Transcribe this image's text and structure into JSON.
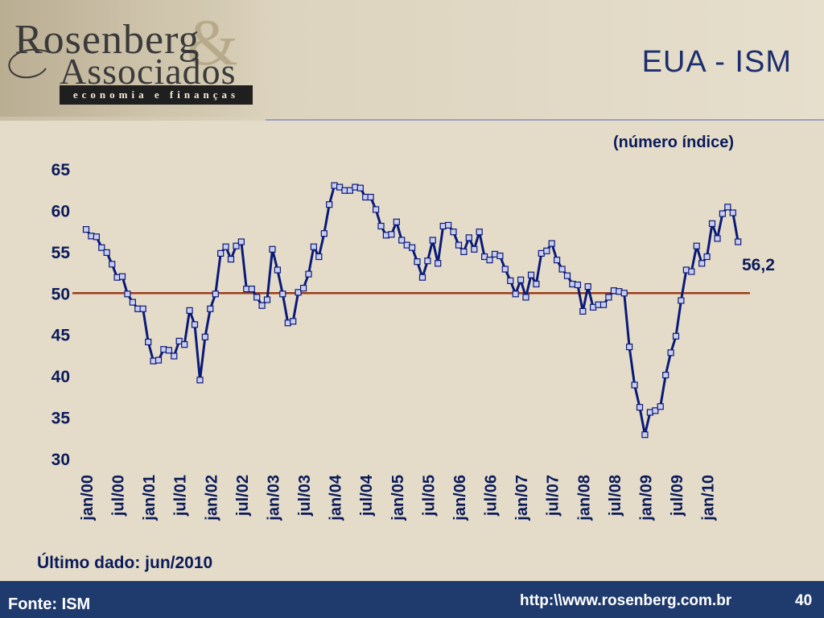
{
  "header": {
    "logo_line1": "Rosenberg",
    "logo_amp": "&",
    "logo_line2": "Associados",
    "logo_tagline": "economia e finanças",
    "title": "EUA - ISM"
  },
  "footer": {
    "source": "Fonte: ISM",
    "url": "http:\\\\www.rosenberg.com.br",
    "page": "40"
  },
  "note": "Último dado: jun/2010",
  "colors": {
    "series": "#0a1a78",
    "marker_fill": "#c9cdf0",
    "reference_line": "#9a3c1a",
    "text": "#0a1a5a",
    "footer": "#1f3b6e"
  },
  "chart_data": {
    "type": "line",
    "subtitle": "(número índice)",
    "ylim": [
      30,
      65
    ],
    "yticks": [
      65,
      60,
      55,
      50,
      45,
      40,
      35,
      30
    ],
    "xticks": [
      "jan/00",
      "jul/00",
      "jan/01",
      "jul/01",
      "jan/02",
      "jul/02",
      "jan/03",
      "jul/03",
      "jan/04",
      "jul/04",
      "jan/05",
      "jul/05",
      "jan/06",
      "jul/06",
      "jan/07",
      "jul/07",
      "jan/08",
      "jul/08",
      "jan/09",
      "jul/09",
      "jan/10"
    ],
    "reference_line": 50,
    "last_value_label": "56,2",
    "grid": false,
    "series": [
      {
        "values": [
          57.7,
          56.9,
          56.8,
          55.5,
          54.9,
          53.5,
          51.9,
          52.0,
          49.9,
          48.9,
          48.1,
          48.1,
          44.1,
          41.8,
          41.9,
          43.2,
          43.1,
          42.4,
          44.2,
          43.8,
          47.9,
          46.2,
          39.5,
          44.7,
          48.1,
          49.9,
          54.8,
          55.6,
          54.1,
          55.7,
          56.2,
          50.5,
          50.5,
          49.5,
          48.5,
          49.2,
          55.3,
          52.8,
          49.9,
          46.4,
          46.6,
          50.1,
          50.6,
          52.3,
          55.6,
          54.4,
          57.2,
          60.7,
          63.0,
          62.8,
          62.4,
          62.4,
          62.8,
          62.7,
          61.6,
          61.6,
          60.1,
          58.1,
          57.0,
          57.1,
          58.6,
          56.4,
          55.8,
          55.5,
          53.8,
          51.9,
          53.9,
          56.4,
          53.6,
          58.1,
          58.2,
          57.4,
          55.8,
          55.0,
          56.7,
          55.3,
          57.4,
          54.4,
          54.0,
          54.7,
          54.5,
          52.9,
          51.5,
          49.9,
          51.6,
          49.5,
          52.2,
          51.1,
          54.8,
          55.1,
          56.0,
          54.0,
          52.9,
          52.1,
          51.1,
          51.0,
          47.8,
          50.8,
          48.3,
          48.6,
          48.6,
          49.5,
          50.3,
          50.2,
          50.0,
          43.5,
          38.9,
          36.2,
          32.9,
          35.6,
          35.8,
          36.3,
          40.1,
          42.8,
          44.8,
          49.1,
          52.8,
          52.6,
          55.7,
          53.6,
          54.4,
          58.4,
          56.6,
          59.6,
          60.4,
          59.7,
          56.2
        ]
      }
    ]
  }
}
